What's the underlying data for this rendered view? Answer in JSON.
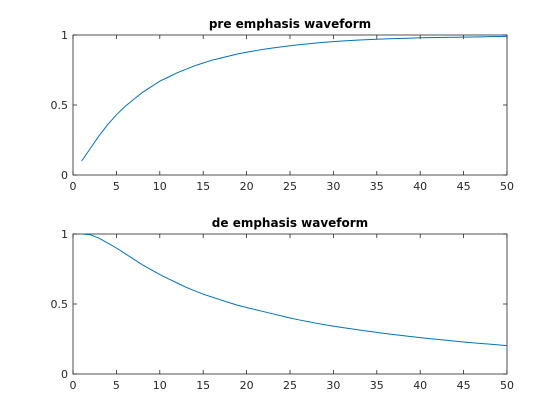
{
  "chart_data": [
    {
      "type": "line",
      "title": "pre emphasis waveform",
      "xlabel": "",
      "ylabel": "",
      "xlim": [
        0,
        50
      ],
      "ylim": [
        0,
        1
      ],
      "xticks": [
        0,
        5,
        10,
        15,
        20,
        25,
        30,
        35,
        40,
        45,
        50
      ],
      "yticks": [
        0,
        0.5,
        1
      ],
      "grid": false,
      "series": [
        {
          "color": "#0072BD",
          "x": [
            1,
            2,
            3,
            4,
            5,
            6,
            7,
            8,
            9,
            10,
            11,
            12,
            13,
            14,
            15,
            16,
            17,
            18,
            19,
            20,
            21,
            22,
            23,
            24,
            25,
            26,
            27,
            28,
            29,
            30,
            31,
            32,
            33,
            34,
            35,
            36,
            37,
            38,
            39,
            40,
            41,
            42,
            43,
            44,
            45,
            46,
            47,
            48,
            49,
            50
          ],
          "y": [
            0.1,
            0.19,
            0.28,
            0.36,
            0.43,
            0.49,
            0.54,
            0.59,
            0.63,
            0.67,
            0.7,
            0.73,
            0.755,
            0.78,
            0.8,
            0.82,
            0.835,
            0.85,
            0.865,
            0.877,
            0.888,
            0.898,
            0.907,
            0.915,
            0.923,
            0.93,
            0.937,
            0.943,
            0.948,
            0.953,
            0.957,
            0.961,
            0.964,
            0.967,
            0.97,
            0.972,
            0.974,
            0.976,
            0.978,
            0.98,
            0.981,
            0.982,
            0.983,
            0.984,
            0.985,
            0.986,
            0.987,
            0.988,
            0.989,
            0.99
          ]
        }
      ]
    },
    {
      "type": "line",
      "title": "de emphasis waveform",
      "xlabel": "",
      "ylabel": "",
      "xlim": [
        0,
        50
      ],
      "ylim": [
        0,
        1
      ],
      "xticks": [
        0,
        5,
        10,
        15,
        20,
        25,
        30,
        35,
        40,
        45,
        50
      ],
      "yticks": [
        0,
        0.5,
        1
      ],
      "grid": false,
      "series": [
        {
          "color": "#0072BD",
          "x": [
            1,
            2,
            3,
            4,
            5,
            6,
            7,
            8,
            9,
            10,
            11,
            12,
            13,
            14,
            15,
            16,
            17,
            18,
            19,
            20,
            21,
            22,
            23,
            24,
            25,
            26,
            27,
            28,
            29,
            30,
            31,
            32,
            33,
            34,
            35,
            36,
            37,
            38,
            39,
            40,
            41,
            42,
            43,
            44,
            45,
            46,
            47,
            48,
            49,
            50
          ],
          "y": [
            1.0,
            0.995,
            0.97,
            0.935,
            0.9,
            0.86,
            0.82,
            0.78,
            0.745,
            0.71,
            0.68,
            0.65,
            0.62,
            0.595,
            0.57,
            0.55,
            0.53,
            0.51,
            0.49,
            0.475,
            0.46,
            0.445,
            0.43,
            0.415,
            0.4,
            0.387,
            0.375,
            0.363,
            0.352,
            0.342,
            0.332,
            0.323,
            0.314,
            0.305,
            0.297,
            0.289,
            0.281,
            0.274,
            0.267,
            0.26,
            0.253,
            0.247,
            0.241,
            0.235,
            0.229,
            0.223,
            0.218,
            0.213,
            0.208,
            0.203
          ]
        }
      ]
    }
  ]
}
